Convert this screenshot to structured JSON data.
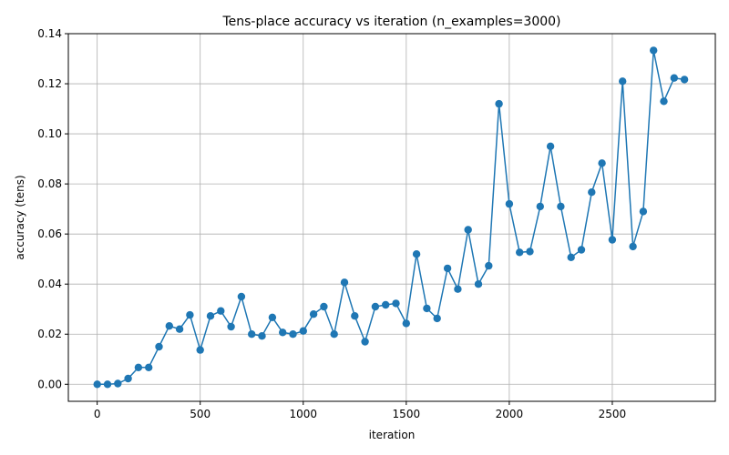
{
  "chart_data": {
    "type": "line",
    "title": "Tens-place accuracy vs iteration (n_examples=3000)",
    "xlabel": "iteration",
    "ylabel": "accuracy (tens)",
    "xlim": [
      -140,
      3000
    ],
    "ylim": [
      -0.0068,
      0.14
    ],
    "xticks": [
      0,
      500,
      1000,
      1500,
      2000,
      2500
    ],
    "xtick_labels": [
      "0",
      "500",
      "1000",
      "1500",
      "2000",
      "2500"
    ],
    "yticks": [
      0.0,
      0.02,
      0.04,
      0.06,
      0.08,
      0.1,
      0.12,
      0.14
    ],
    "ytick_labels": [
      "0.00",
      "0.02",
      "0.04",
      "0.06",
      "0.08",
      "0.10",
      "0.12",
      "0.14"
    ],
    "grid": true,
    "marker": "circle",
    "color": "#1f77b4",
    "x": [
      0,
      50,
      100,
      150,
      200,
      250,
      300,
      350,
      400,
      450,
      500,
      550,
      600,
      650,
      700,
      750,
      800,
      850,
      900,
      950,
      1000,
      1050,
      1100,
      1150,
      1200,
      1250,
      1300,
      1350,
      1400,
      1450,
      1500,
      1550,
      1600,
      1650,
      1700,
      1750,
      1800,
      1850,
      1900,
      1950,
      2000,
      2050,
      2100,
      2150,
      2200,
      2250,
      2300,
      2350,
      2400,
      2450,
      2500,
      2550,
      2600,
      2650,
      2700,
      2750,
      2800,
      2850
    ],
    "y": [
      0.0,
      0.0,
      0.0003,
      0.0023,
      0.0067,
      0.0067,
      0.015,
      0.0233,
      0.022,
      0.0277,
      0.0137,
      0.0273,
      0.0293,
      0.023,
      0.035,
      0.02,
      0.0193,
      0.0267,
      0.0207,
      0.02,
      0.0213,
      0.028,
      0.031,
      0.02,
      0.0407,
      0.0273,
      0.017,
      0.031,
      0.0317,
      0.0323,
      0.0243,
      0.052,
      0.0303,
      0.0263,
      0.0463,
      0.038,
      0.0617,
      0.04,
      0.0473,
      0.112,
      0.072,
      0.0527,
      0.053,
      0.071,
      0.095,
      0.071,
      0.0507,
      0.0537,
      0.0767,
      0.0883,
      0.0577,
      0.121,
      0.055,
      0.069,
      0.1333,
      0.113,
      0.1223,
      0.1217
    ]
  }
}
